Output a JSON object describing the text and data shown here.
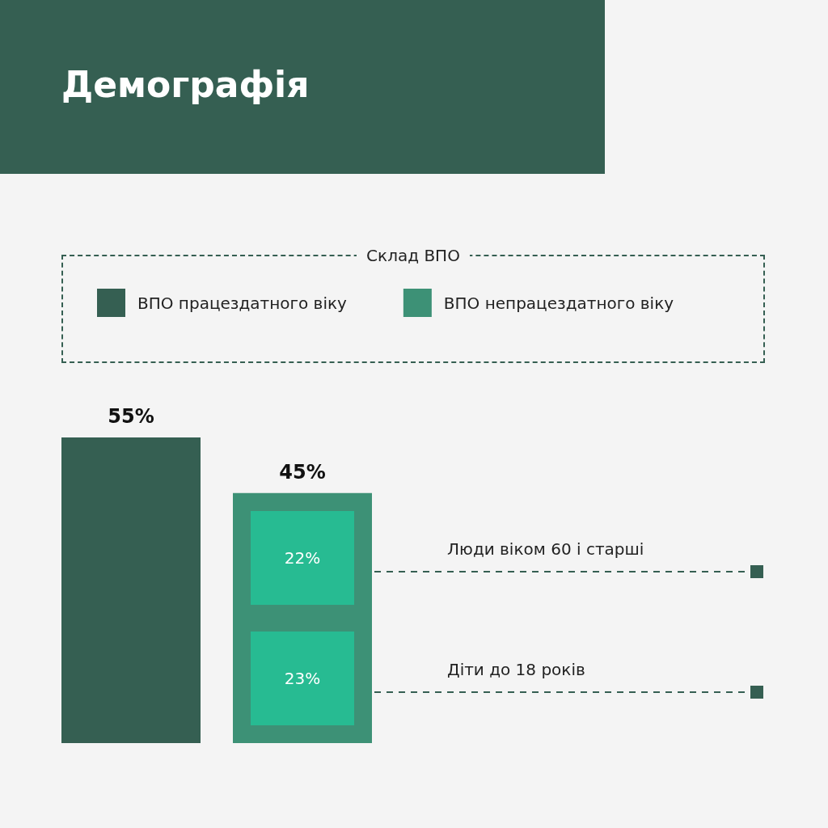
{
  "chart_data": {
    "type": "bar",
    "title": "Демографія",
    "legend_title": "Склад ВПО",
    "legend": "top",
    "stacked": true,
    "categories": [
      null,
      null
    ],
    "series": [
      {
        "name": "ВПО працездатного віку",
        "color": "#355f52",
        "values": [
          55,
          null
        ],
        "value_labels": [
          "55%",
          null
        ]
      },
      {
        "name": "ВПО непрацездатного віку",
        "color": "#3d9176",
        "values": [
          null,
          45
        ],
        "value_labels": [
          null,
          "45%"
        ]
      }
    ],
    "annotations": [
      "22%",
      "Люди віком 60 і старші",
      "23%",
      "Діти до 18 років"
    ]
  }
}
